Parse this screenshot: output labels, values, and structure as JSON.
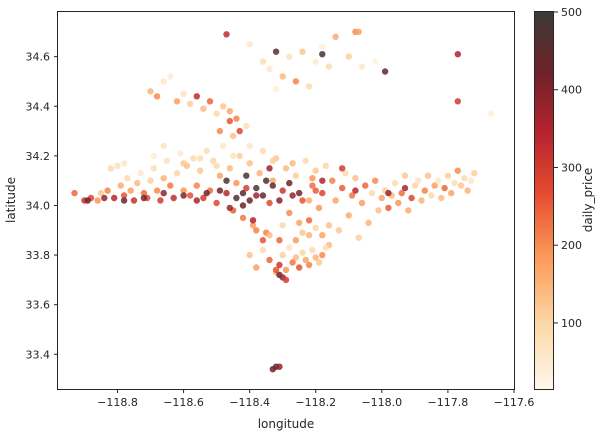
{
  "chart_data": {
    "type": "scatter",
    "xlabel": "longitude",
    "ylabel": "latitude",
    "xlim": [
      -118.98,
      -117.6
    ],
    "ylim": [
      33.26,
      34.78
    ],
    "xticks": [
      -118.8,
      -118.6,
      -118.4,
      -118.2,
      -118.0,
      -117.8,
      -117.6
    ],
    "xtick_labels": [
      "−118.8",
      "−118.6",
      "−118.4",
      "−118.2",
      "−118.0",
      "−117.8",
      "−117.6"
    ],
    "yticks": [
      33.4,
      33.6,
      33.8,
      34.0,
      34.2,
      34.4,
      34.6
    ],
    "ytick_labels": [
      "33.4",
      "33.6",
      "33.8",
      "34.0",
      "34.2",
      "34.4",
      "34.6"
    ],
    "colorbar": {
      "label": "daily_price",
      "min": 15,
      "max": 500,
      "ticks": [
        100,
        200,
        300,
        400,
        500
      ],
      "tick_labels": [
        "100",
        "200",
        "300",
        "400",
        "500"
      ],
      "colormap": "OrRd-like (white to dark red to black)"
    },
    "grid": false,
    "points": [
      [
        -118.93,
        34.05,
        240
      ],
      [
        -118.9,
        34.02,
        310
      ],
      [
        -118.88,
        34.03,
        280
      ],
      [
        -118.86,
        34.02,
        190
      ],
      [
        -118.85,
        34.05,
        120
      ],
      [
        -118.83,
        34.06,
        210
      ],
      [
        -118.81,
        34.03,
        340
      ],
      [
        -118.79,
        34.08,
        160
      ],
      [
        -118.78,
        34.04,
        260
      ],
      [
        -118.77,
        34.11,
        90
      ],
      [
        -118.76,
        34.06,
        180
      ],
      [
        -118.75,
        34.02,
        320
      ],
      [
        -118.74,
        34.09,
        140
      ],
      [
        -118.73,
        34.13,
        60
      ],
      [
        -118.72,
        34.05,
        230
      ],
      [
        -118.71,
        34.03,
        270
      ],
      [
        -118.7,
        34.1,
        110
      ],
      [
        -118.69,
        34.15,
        80
      ],
      [
        -118.68,
        34.06,
        200
      ],
      [
        -118.67,
        34.02,
        300
      ],
      [
        -118.66,
        34.11,
        150
      ],
      [
        -118.65,
        34.18,
        70
      ],
      [
        -118.64,
        34.08,
        220
      ],
      [
        -118.63,
        34.03,
        330
      ],
      [
        -118.62,
        34.13,
        100
      ],
      [
        -118.61,
        34.21,
        50
      ],
      [
        -118.6,
        34.06,
        190
      ],
      [
        -118.59,
        34.16,
        130
      ],
      [
        -118.58,
        34.04,
        260
      ],
      [
        -118.57,
        34.19,
        90
      ],
      [
        -118.8,
        34.16,
        75
      ],
      [
        -118.78,
        34.17,
        55
      ],
      [
        -118.82,
        34.15,
        95
      ],
      [
        -118.69,
        34.2,
        45
      ],
      [
        -118.66,
        34.24,
        65
      ],
      [
        -118.56,
        34.08,
        210
      ],
      [
        -118.55,
        34.14,
        120
      ],
      [
        -118.54,
        34.03,
        300
      ],
      [
        -118.53,
        34.22,
        80
      ],
      [
        -118.52,
        34.06,
        230
      ],
      [
        -118.51,
        34.18,
        100
      ],
      [
        -118.5,
        34.01,
        280
      ],
      [
        -118.49,
        34.12,
        170
      ],
      [
        -118.48,
        34.24,
        60
      ],
      [
        -118.47,
        34.05,
        340
      ],
      [
        -118.46,
        34.15,
        140
      ],
      [
        -118.45,
        33.98,
        250
      ],
      [
        -118.44,
        34.09,
        190
      ],
      [
        -118.43,
        34.2,
        110
      ],
      [
        -118.42,
        33.95,
        220
      ],
      [
        -118.41,
        34.07,
        290
      ],
      [
        -118.4,
        34.17,
        130
      ],
      [
        -118.39,
        33.92,
        180
      ],
      [
        -118.38,
        34.04,
        360
      ],
      [
        -118.37,
        34.13,
        150
      ],
      [
        -118.36,
        34.22,
        90
      ],
      [
        -118.35,
        33.89,
        210
      ],
      [
        -118.34,
        34.01,
        270
      ],
      [
        -118.33,
        34.1,
        160
      ],
      [
        -118.32,
        34.19,
        120
      ],
      [
        -118.31,
        33.86,
        240
      ],
      [
        -118.3,
        34.06,
        310
      ],
      [
        -118.29,
        34.15,
        140
      ],
      [
        -118.28,
        33.97,
        200
      ],
      [
        -118.27,
        34.04,
        380
      ],
      [
        -118.26,
        34.12,
        110
      ],
      [
        -118.25,
        33.93,
        170
      ],
      [
        -118.24,
        34.02,
        260
      ],
      [
        -118.23,
        34.18,
        90
      ],
      [
        -118.22,
        33.88,
        150
      ],
      [
        -118.21,
        34.08,
        230
      ],
      [
        -118.2,
        34.14,
        120
      ],
      [
        -118.19,
        33.99,
        190
      ],
      [
        -118.18,
        34.05,
        280
      ],
      [
        -118.17,
        34.16,
        100
      ],
      [
        -118.16,
        33.84,
        140
      ],
      [
        -118.15,
        34.1,
        210
      ],
      [
        -118.14,
        34.02,
        170
      ],
      [
        -118.13,
        33.9,
        120
      ],
      [
        -118.12,
        34.07,
        250
      ],
      [
        -118.11,
        34.13,
        90
      ],
      [
        -118.1,
        33.96,
        160
      ],
      [
        -118.09,
        34.04,
        220
      ],
      [
        -118.08,
        34.11,
        130
      ],
      [
        -118.07,
        33.87,
        110
      ],
      [
        -118.06,
        34.01,
        180
      ],
      [
        -118.05,
        34.08,
        240
      ],
      [
        -118.04,
        33.93,
        150
      ],
      [
        -118.03,
        34.05,
        90
      ],
      [
        -118.02,
        34.1,
        200
      ],
      [
        -118.01,
        33.98,
        130
      ],
      [
        -118.0,
        34.03,
        170
      ],
      [
        -117.99,
        34.06,
        110
      ],
      [
        -117.98,
        33.99,
        250
      ],
      [
        -117.97,
        34.04,
        140
      ],
      [
        -117.96,
        34.09,
        90
      ],
      [
        -117.95,
        34.01,
        190
      ],
      [
        -117.94,
        34.05,
        230
      ],
      [
        -117.93,
        34.12,
        120
      ],
      [
        -117.92,
        33.98,
        160
      ],
      [
        -117.91,
        34.03,
        280
      ],
      [
        -117.9,
        34.08,
        100
      ],
      [
        -117.89,
        34.1,
        70
      ],
      [
        -117.88,
        34.02,
        150
      ],
      [
        -117.87,
        34.06,
        210
      ],
      [
        -117.86,
        34.12,
        130
      ],
      [
        -117.85,
        34.04,
        90
      ],
      [
        -117.84,
        34.08,
        180
      ],
      [
        -117.83,
        34.1,
        60
      ],
      [
        -117.82,
        34.03,
        140
      ],
      [
        -117.81,
        34.07,
        240
      ],
      [
        -117.8,
        34.12,
        110
      ],
      [
        -117.79,
        34.05,
        170
      ],
      [
        -117.78,
        34.09,
        80
      ],
      [
        -117.77,
        34.14,
        200
      ],
      [
        -117.76,
        34.08,
        120
      ],
      [
        -117.75,
        34.11,
        90
      ],
      [
        -117.74,
        34.06,
        150
      ],
      [
        -117.73,
        34.1,
        60
      ],
      [
        -117.72,
        34.13,
        110
      ],
      [
        -118.4,
        33.8,
        130
      ],
      [
        -118.38,
        33.75,
        180
      ],
      [
        -118.36,
        33.82,
        90
      ],
      [
        -118.34,
        33.78,
        240
      ],
      [
        -118.32,
        33.73,
        150
      ],
      [
        -118.31,
        33.76,
        310
      ],
      [
        -118.3,
        33.8,
        110
      ],
      [
        -118.29,
        33.74,
        190
      ],
      [
        -118.28,
        33.83,
        70
      ],
      [
        -118.27,
        33.77,
        220
      ],
      [
        -118.26,
        33.79,
        140
      ],
      [
        -118.25,
        33.75,
        260
      ],
      [
        -118.24,
        33.81,
        100
      ],
      [
        -118.23,
        33.78,
        170
      ],
      [
        -118.22,
        33.76,
        210
      ],
      [
        -118.21,
        33.82,
        90
      ],
      [
        -118.2,
        33.79,
        150
      ],
      [
        -118.19,
        33.77,
        120
      ],
      [
        -118.18,
        33.8,
        200
      ],
      [
        -118.17,
        33.83,
        80
      ],
      [
        -118.36,
        33.86,
        260
      ],
      [
        -118.34,
        33.88,
        140
      ],
      [
        -118.38,
        33.9,
        210
      ],
      [
        -118.3,
        33.92,
        90
      ],
      [
        -118.26,
        33.86,
        180
      ],
      [
        -118.24,
        33.89,
        120
      ],
      [
        -118.22,
        33.94,
        240
      ],
      [
        -118.2,
        33.91,
        100
      ],
      [
        -118.18,
        33.88,
        170
      ],
      [
        -118.16,
        33.92,
        130
      ],
      [
        -118.31,
        33.72,
        420
      ],
      [
        -118.3,
        33.71,
        380
      ],
      [
        -118.32,
        33.74,
        260
      ],
      [
        -118.29,
        33.7,
        300
      ],
      [
        -118.44,
        34.03,
        470
      ],
      [
        -118.42,
        34.05,
        450
      ],
      [
        -118.4,
        34.02,
        430
      ],
      [
        -118.38,
        34.07,
        480
      ],
      [
        -118.36,
        34.04,
        440
      ],
      [
        -118.47,
        34.1,
        460
      ],
      [
        -118.49,
        34.06,
        410
      ],
      [
        -118.53,
        34.05,
        420
      ],
      [
        -118.6,
        34.04,
        400
      ],
      [
        -118.66,
        34.05,
        390
      ],
      [
        -118.72,
        34.03,
        410
      ],
      [
        -118.78,
        34.02,
        430
      ],
      [
        -118.84,
        34.03,
        380
      ],
      [
        -118.89,
        34.02,
        420
      ],
      [
        -118.35,
        34.1,
        460
      ],
      [
        -118.33,
        34.08,
        440
      ],
      [
        -118.31,
        34.02,
        400
      ],
      [
        -118.28,
        34.09,
        420
      ],
      [
        -118.25,
        34.05,
        410
      ],
      [
        -118.41,
        34.12,
        480
      ],
      [
        -118.56,
        34.02,
        360
      ],
      [
        -118.46,
        33.99,
        380
      ],
      [
        -118.39,
        33.94,
        350
      ],
      [
        -118.42,
        34.0,
        420
      ],
      [
        -118.34,
        34.15,
        370
      ],
      [
        -118.18,
        34.1,
        350
      ],
      [
        -118.08,
        34.06,
        340
      ],
      [
        -117.98,
        34.05,
        380
      ],
      [
        -117.93,
        34.07,
        360
      ],
      [
        -118.12,
        34.15,
        300
      ],
      [
        -118.2,
        34.06,
        250
      ],
      [
        -118.21,
        34.11,
        190
      ],
      [
        -118.22,
        34.02,
        160
      ],
      [
        -118.27,
        34.17,
        140
      ],
      [
        -118.33,
        34.18,
        110
      ],
      [
        -118.5,
        34.16,
        90
      ],
      [
        -118.45,
        34.2,
        70
      ],
      [
        -118.4,
        34.24,
        60
      ],
      [
        -118.55,
        34.19,
        85
      ],
      [
        -118.6,
        34.17,
        120
      ],
      [
        -118.43,
        34.3,
        280
      ],
      [
        -118.44,
        34.35,
        210
      ],
      [
        -118.46,
        34.38,
        160
      ],
      [
        -118.48,
        34.4,
        120
      ],
      [
        -118.5,
        34.37,
        90
      ],
      [
        -118.52,
        34.42,
        240
      ],
      [
        -118.54,
        34.39,
        140
      ],
      [
        -118.56,
        34.44,
        330
      ],
      [
        -118.58,
        34.41,
        110
      ],
      [
        -118.6,
        34.45,
        70
      ],
      [
        -118.62,
        34.42,
        180
      ],
      [
        -118.46,
        34.34,
        260
      ],
      [
        -118.41,
        34.32,
        80
      ],
      [
        -118.45,
        34.28,
        130
      ],
      [
        -118.49,
        34.3,
        200
      ],
      [
        -118.68,
        34.44,
        200
      ],
      [
        -118.7,
        34.46,
        150
      ],
      [
        -118.66,
        34.5,
        60
      ],
      [
        -118.64,
        34.52,
        45
      ],
      [
        -118.28,
        34.6,
        70
      ],
      [
        -118.24,
        34.62,
        120
      ],
      [
        -118.2,
        34.58,
        50
      ],
      [
        -118.16,
        34.56,
        90
      ],
      [
        -118.18,
        34.64,
        40
      ],
      [
        -118.1,
        34.6,
        110
      ],
      [
        -118.06,
        34.56,
        60
      ],
      [
        -118.02,
        34.58,
        30
      ],
      [
        -118.14,
        34.68,
        160
      ],
      [
        -118.08,
        34.7,
        200
      ],
      [
        -118.3,
        34.52,
        140
      ],
      [
        -118.26,
        34.5,
        210
      ],
      [
        -118.22,
        34.48,
        90
      ],
      [
        -118.34,
        34.55,
        60
      ],
      [
        -118.32,
        34.47,
        40
      ],
      [
        -118.32,
        34.62,
        460
      ],
      [
        -118.18,
        34.61,
        480
      ],
      [
        -117.99,
        34.54,
        440
      ],
      [
        -117.77,
        34.42,
        300
      ],
      [
        -117.77,
        34.61,
        350
      ],
      [
        -118.47,
        34.69,
        330
      ],
      [
        -118.07,
        34.7,
        170
      ],
      [
        -117.67,
        34.37,
        40
      ],
      [
        -118.4,
        34.65,
        60
      ],
      [
        -118.36,
        34.58,
        80
      ],
      [
        -118.32,
        33.35,
        460
      ],
      [
        -118.33,
        33.34,
        420
      ],
      [
        -118.31,
        33.35,
        380
      ]
    ]
  }
}
